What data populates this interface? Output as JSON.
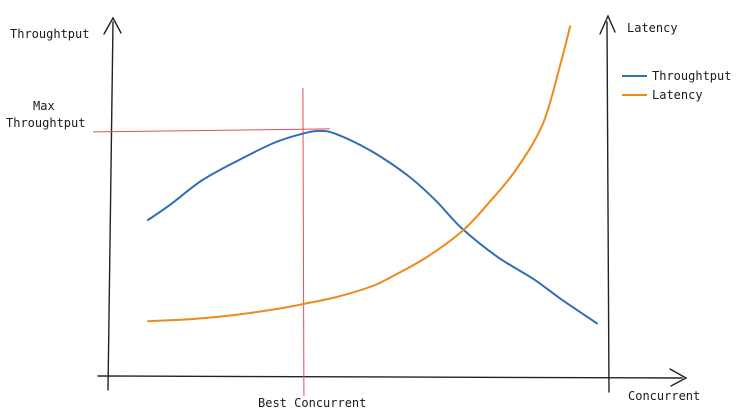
{
  "chart_data": {
    "type": "line",
    "title": "",
    "xlabel": "Concurrent",
    "ylabel_left": "Throughtput",
    "ylabel_right": "Latency",
    "x_marker_label": "Best Concurrent",
    "y_marker_label": [
      "Max",
      "Throughtput"
    ],
    "grid": false,
    "legend_position": "top-right",
    "series": [
      {
        "name": "Throughtput",
        "color": "#2f6fb7",
        "axis": "left",
        "x": [
          0.0,
          0.05,
          0.12,
          0.2,
          0.28,
          0.34,
          0.38,
          0.42,
          0.5,
          0.58,
          0.64,
          0.7,
          0.78,
          0.86,
          0.92,
          1.0
        ],
        "y": [
          0.5,
          0.57,
          0.68,
          0.77,
          0.85,
          0.89,
          0.905,
          0.89,
          0.81,
          0.7,
          0.59,
          0.46,
          0.33,
          0.23,
          0.14,
          0.03
        ]
      },
      {
        "name": "Latency",
        "color": "#ee8a1c",
        "axis": "right",
        "x": [
          0.0,
          0.1,
          0.2,
          0.3,
          0.35,
          0.42,
          0.5,
          0.55,
          0.62,
          0.7,
          0.76,
          0.82,
          0.88,
          0.92,
          0.94
        ],
        "y": [
          0.04,
          0.05,
          0.07,
          0.1,
          0.12,
          0.15,
          0.2,
          0.25,
          0.33,
          0.45,
          0.58,
          0.73,
          0.94,
          1.22,
          1.38
        ]
      }
    ],
    "vline_x": 0.345,
    "hline_y": 0.905
  }
}
